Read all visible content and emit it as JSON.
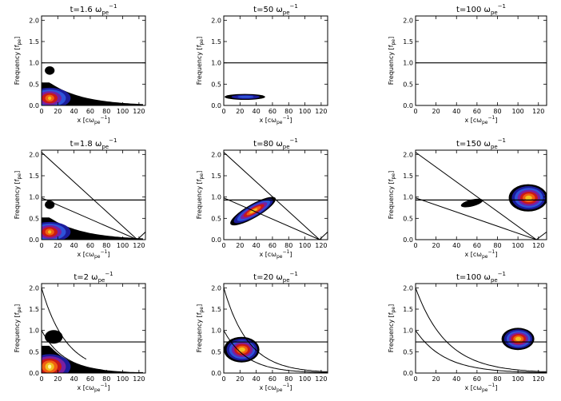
{
  "chart_data": [
    {
      "type": "heatmap",
      "title_main": "t=1.6 ω",
      "title_sub": "pe",
      "title_sup": "−1",
      "xlabel_main": "x [cω",
      "xlabel_sub": "pe",
      "xlabel_sup": "−1",
      "xlabel_end": "]",
      "ylabel": "Frequency [f",
      "ylabel_sub": "pe",
      "ylabel_end": "]",
      "xlim": [
        0,
        128
      ],
      "ylim": [
        0,
        2.1
      ],
      "xticks": [
        "0",
        "20",
        "40",
        "60",
        "80",
        "100",
        "120"
      ],
      "yticks": [
        "0.0",
        "0.5",
        "1.0",
        "1.5",
        "2.0"
      ],
      "hlines": [
        1.0
      ],
      "lines": [],
      "blobs": [
        {
          "kind": "band",
          "x0": 0,
          "x1": 125,
          "ymax": 0.52,
          "decay": 40,
          "peak_x": 10,
          "peak_y": 0.17,
          "core": "warm"
        },
        {
          "kind": "spot",
          "cx": 10,
          "cy": 0.82,
          "rx": 6,
          "ry": 0.1,
          "core": "none"
        }
      ]
    },
    {
      "type": "heatmap",
      "title_main": "t=50 ω",
      "title_sub": "pe",
      "title_sup": "−1",
      "xlabel_main": "x [cω",
      "xlabel_sub": "pe",
      "xlabel_sup": "−1",
      "xlabel_end": "]",
      "ylabel": "Frequency [f",
      "ylabel_sub": "pe",
      "ylabel_end": "]",
      "xlim": [
        0,
        128
      ],
      "ylim": [
        0,
        2.1
      ],
      "xticks": [
        "0",
        "20",
        "40",
        "60",
        "80",
        "100",
        "120"
      ],
      "yticks": [
        "0.0",
        "0.5",
        "1.0",
        "1.5",
        "2.0"
      ],
      "hlines": [
        1.0
      ],
      "lines": [],
      "blobs": [
        {
          "kind": "spot",
          "cx": 26,
          "cy": 0.2,
          "rx": 25,
          "ry": 0.07,
          "core": "blue"
        }
      ]
    },
    {
      "type": "heatmap",
      "title_main": "t=100 ω",
      "title_sub": "pe",
      "title_sup": "−1",
      "xlabel_main": "x [cω",
      "xlabel_sub": "pe",
      "xlabel_sup": "−1",
      "xlabel_end": "]",
      "ylabel": "Frequency [f",
      "ylabel_sub": "pe",
      "ylabel_end": "]",
      "xlim": [
        0,
        128
      ],
      "ylim": [
        0,
        2.1
      ],
      "xticks": [
        "0",
        "20",
        "40",
        "60",
        "80",
        "100",
        "120"
      ],
      "yticks": [
        "0.0",
        "0.5",
        "1.0",
        "1.5",
        "2.0"
      ],
      "hlines": [
        1.0
      ],
      "lines": [],
      "blobs": []
    },
    {
      "type": "heatmap",
      "title_main": "t=1.8 ω",
      "title_sub": "pe",
      "title_sup": "−1",
      "xlabel_main": "x [cω",
      "xlabel_sub": "pe",
      "xlabel_sup": "−1",
      "xlabel_end": "]",
      "ylabel": "Frequency [f",
      "ylabel_sub": "pe",
      "ylabel_end": "]",
      "xlim": [
        0,
        128
      ],
      "ylim": [
        0,
        2.1
      ],
      "xticks": [
        "0",
        "20",
        "40",
        "60",
        "80",
        "100",
        "120"
      ],
      "yticks": [
        "0.0",
        "0.5",
        "1.0",
        "1.5",
        "2.0"
      ],
      "hlines": [
        0.93
      ],
      "lines": [
        {
          "x1": 0,
          "y1": 2.05,
          "x2": 118,
          "y2": 0.0
        },
        {
          "x1": 0,
          "y1": 0.98,
          "x2": 118,
          "y2": 0.0
        },
        {
          "x1": 118,
          "y1": 0.0,
          "x2": 128,
          "y2": 0.18
        }
      ],
      "blobs": [
        {
          "kind": "band",
          "x0": 0,
          "x1": 125,
          "ymax": 0.5,
          "decay": 40,
          "peak_x": 10,
          "peak_y": 0.18,
          "core": "warm"
        },
        {
          "kind": "spot",
          "cx": 10,
          "cy": 0.82,
          "rx": 6,
          "ry": 0.1,
          "core": "none"
        }
      ]
    },
    {
      "type": "heatmap",
      "title_main": "t=80 ω",
      "title_sub": "pe",
      "title_sup": "−1",
      "xlabel_main": "x [cω",
      "xlabel_sub": "pe",
      "xlabel_sup": "−1",
      "xlabel_end": "]",
      "ylabel": "Frequency [f",
      "ylabel_sub": "pe",
      "ylabel_end": "]",
      "xlim": [
        0,
        128
      ],
      "ylim": [
        0,
        2.1
      ],
      "xticks": [
        "0",
        "20",
        "40",
        "60",
        "80",
        "100",
        "120"
      ],
      "yticks": [
        "0.0",
        "0.5",
        "1.0",
        "1.5",
        "2.0"
      ],
      "hlines": [
        0.93
      ],
      "lines": [
        {
          "x1": 0,
          "y1": 2.05,
          "x2": 118,
          "y2": 0.0
        },
        {
          "x1": 0,
          "y1": 0.98,
          "x2": 118,
          "y2": 0.0
        },
        {
          "x1": 118,
          "y1": 0.0,
          "x2": 128,
          "y2": 0.18
        }
      ],
      "blobs": [
        {
          "kind": "tilted",
          "cx": 36,
          "cy": 0.67,
          "rx": 32,
          "ry": 0.16,
          "slope": 0.011,
          "core": "warm"
        }
      ]
    },
    {
      "type": "heatmap",
      "title_main": "t=150 ω",
      "title_sub": "pe",
      "title_sup": "−1",
      "xlabel_main": "x [cω",
      "xlabel_sub": "pe",
      "xlabel_sup": "−1",
      "xlabel_end": "]",
      "ylabel": "Frequency [f",
      "ylabel_sub": "pe",
      "ylabel_end": "]",
      "xlim": [
        0,
        128
      ],
      "ylim": [
        0,
        2.1
      ],
      "xticks": [
        "0",
        "20",
        "40",
        "60",
        "80",
        "100",
        "120"
      ],
      "yticks": [
        "0.0",
        "0.5",
        "1.0",
        "1.5",
        "2.0"
      ],
      "hlines": [
        0.93
      ],
      "lines": [
        {
          "x1": 0,
          "y1": 2.05,
          "x2": 118,
          "y2": 0.0
        },
        {
          "x1": 0,
          "y1": 0.98,
          "x2": 118,
          "y2": 0.0
        },
        {
          "x1": 118,
          "y1": 0.0,
          "x2": 128,
          "y2": 0.18
        }
      ],
      "blobs": [
        {
          "kind": "spot",
          "cx": 110,
          "cy": 0.98,
          "rx": 19,
          "ry": 0.32,
          "core": "warm"
        },
        {
          "kind": "tilted",
          "cx": 55,
          "cy": 0.86,
          "rx": 11,
          "ry": 0.08,
          "slope": 0.006,
          "core": "none"
        }
      ]
    },
    {
      "type": "heatmap",
      "title_main": "t=2 ω",
      "title_sub": "pe",
      "title_sup": "−1",
      "xlabel_main": "x [cω",
      "xlabel_sub": "pe",
      "xlabel_sup": "−1",
      "xlabel_end": "]",
      "ylabel": "Frequency [f",
      "ylabel_sub": "pe",
      "ylabel_end": "]",
      "xlim": [
        0,
        128
      ],
      "ylim": [
        0,
        2.1
      ],
      "xticks": [
        "0",
        "20",
        "40",
        "60",
        "80",
        "100",
        "120"
      ],
      "yticks": [
        "0.0",
        "0.5",
        "1.0",
        "1.5",
        "2.0"
      ],
      "hlines": [
        0.73
      ],
      "curves": [
        {
          "a": 2.0,
          "b": 0.33,
          "x_end": 55
        },
        {
          "a": 1.0,
          "b": 0.35,
          "x_end": 75
        }
      ],
      "lines": [],
      "blobs": [
        {
          "kind": "band",
          "x0": 0,
          "x1": 125,
          "ymax": 0.62,
          "decay": 30,
          "peak_x": 10,
          "peak_y": 0.15,
          "core": "hot"
        },
        {
          "kind": "spot",
          "cx": 15,
          "cy": 0.85,
          "rx": 11,
          "ry": 0.16,
          "core": "none"
        }
      ]
    },
    {
      "type": "heatmap",
      "title_main": "t=20 ω",
      "title_sub": "pe",
      "title_sup": "−1",
      "xlabel_main": "x [cω",
      "xlabel_sub": "pe",
      "xlabel_sup": "−1",
      "xlabel_end": "]",
      "ylabel": "Frequency [f",
      "ylabel_sub": "pe",
      "ylabel_end": "]",
      "xlim": [
        0,
        128
      ],
      "ylim": [
        0,
        2.1
      ],
      "xticks": [
        "0",
        "20",
        "40",
        "60",
        "80",
        "100",
        "120"
      ],
      "yticks": [
        "0.0",
        "0.5",
        "1.0",
        "1.5",
        "2.0"
      ],
      "hlines": [
        0.73
      ],
      "curves": [
        {
          "a": 2.0,
          "b": 0.33,
          "x_end": 128
        },
        {
          "a": 1.0,
          "b": 0.35,
          "x_end": 128
        }
      ],
      "lines": [],
      "blobs": [
        {
          "kind": "spot",
          "cx": 22,
          "cy": 0.55,
          "rx": 22,
          "ry": 0.3,
          "core": "warm"
        }
      ]
    },
    {
      "type": "heatmap",
      "title_main": "t=100 ω",
      "title_sub": "pe",
      "title_sup": "−1",
      "xlabel_main": "x [cω",
      "xlabel_sub": "pe",
      "xlabel_sup": "−1",
      "xlabel_end": "]",
      "ylabel": "Frequency [f",
      "ylabel_sub": "pe",
      "ylabel_end": "]",
      "xlim": [
        0,
        128
      ],
      "ylim": [
        0,
        2.1
      ],
      "xticks": [
        "0",
        "20",
        "40",
        "60",
        "80",
        "100",
        "120"
      ],
      "yticks": [
        "0.0",
        "0.5",
        "1.0",
        "1.5",
        "2.0"
      ],
      "hlines": [
        0.73
      ],
      "curves": [
        {
          "a": 2.0,
          "b": 0.33,
          "x_end": 128
        },
        {
          "a": 1.0,
          "b": 0.35,
          "x_end": 128
        }
      ],
      "lines": [],
      "blobs": [
        {
          "kind": "spot",
          "cx": 100,
          "cy": 0.8,
          "rx": 16,
          "ry": 0.26,
          "core": "warm"
        }
      ]
    }
  ],
  "colors": {
    "outer": "#000000",
    "level1": "#1c1c9a",
    "level2": "#2e53d8",
    "level3": "#7a1fa0",
    "level4": "#c81818",
    "level5": "#f06010",
    "level6": "#f0c020",
    "level7": "#fff6a0",
    "line": "#000000"
  }
}
